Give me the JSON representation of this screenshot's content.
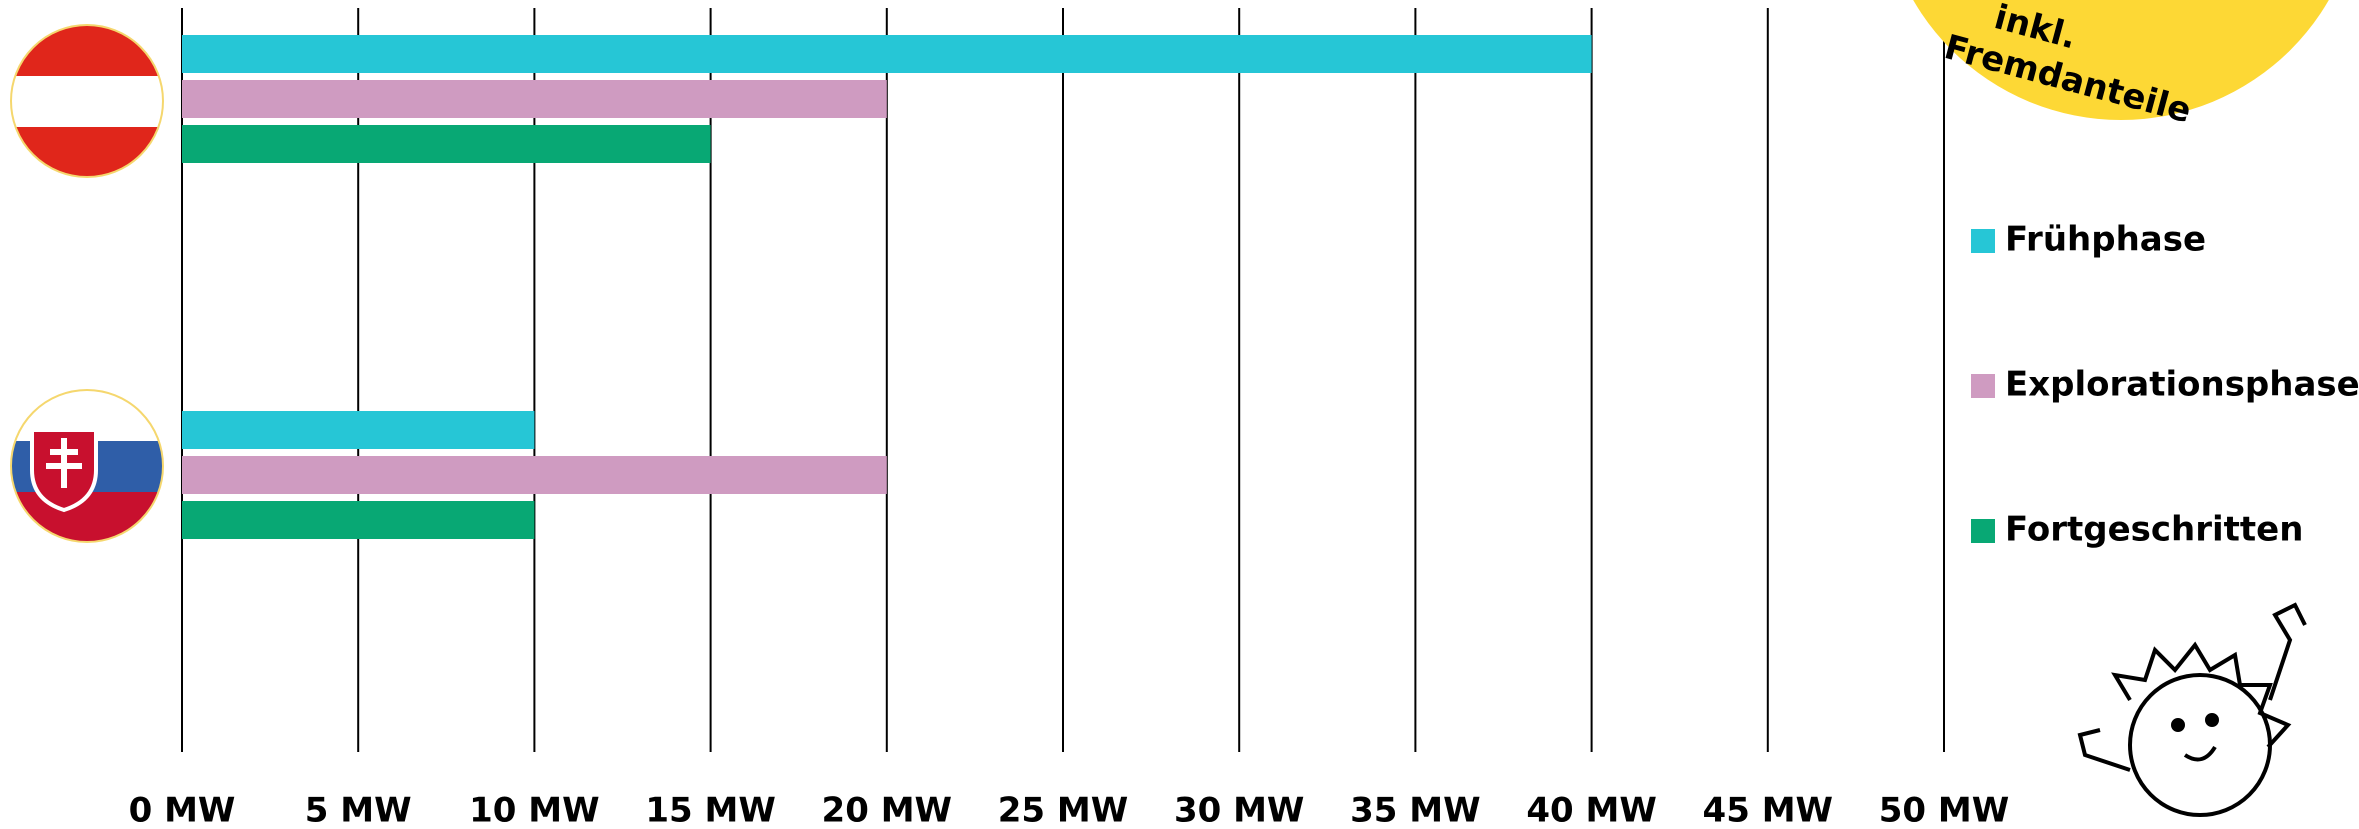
{
  "chart_data": {
    "type": "barh",
    "categories": [
      null,
      null
    ],
    "series": [
      {
        "name": "Frühphase",
        "color": "#26c6d6",
        "values": [
          40,
          10
        ]
      },
      {
        "name": "Explorationsphase",
        "color": "#cf9bc1",
        "values": [
          20,
          20
        ]
      },
      {
        "name": "Fortgeschritten",
        "color": "#08a874",
        "values": [
          15,
          10
        ]
      }
    ],
    "xlim": [
      0,
      50
    ],
    "xticks": [
      {
        "value": 0,
        "label": "0 MW"
      },
      {
        "value": 5,
        "label": "5 MW"
      },
      {
        "value": 10,
        "label": "10 MW"
      },
      {
        "value": 15,
        "label": "15 MW"
      },
      {
        "value": 20,
        "label": "20 MW"
      },
      {
        "value": 25,
        "label": "25 MW"
      },
      {
        "value": 30,
        "label": "30 MW"
      },
      {
        "value": 35,
        "label": "35 MW"
      },
      {
        "value": 40,
        "label": "40 MW"
      },
      {
        "value": 45,
        "label": "45 MW"
      },
      {
        "value": 50,
        "label": "50 MW"
      }
    ],
    "grid": true,
    "annotations": [
      "inkl.",
      "Fremdanteile"
    ]
  }
}
